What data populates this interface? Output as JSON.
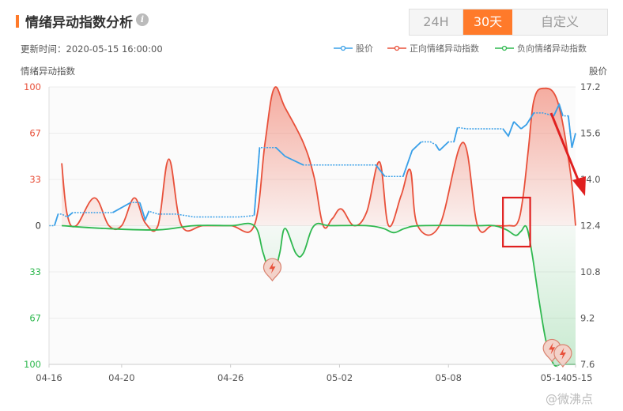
{
  "header": {
    "title": "情绪异动指数分析",
    "info_icon": "i",
    "tabs": [
      {
        "label": "24H",
        "active": false
      },
      {
        "label": "30天",
        "active": true
      },
      {
        "label": "自定义",
        "active": false
      }
    ],
    "accent_color": "#ff7a2a"
  },
  "meta": {
    "updated": "更新时间：2020-05-15 16:00:00"
  },
  "watermark": "@微沸点",
  "chart_data": {
    "type": "line",
    "ylabel": "情绪异动指数",
    "y2label": "股价",
    "left_ticks": [
      {
        "label": "100",
        "color": "#e8503a"
      },
      {
        "label": "67",
        "color": "#e8503a"
      },
      {
        "label": "33",
        "color": "#e8503a"
      },
      {
        "label": "0",
        "color": "#333333"
      },
      {
        "label": "33",
        "color": "#2fb84f"
      },
      {
        "label": "67",
        "color": "#2fb84f"
      },
      {
        "label": "100",
        "color": "#2fb84f"
      }
    ],
    "right_ticks": [
      "17.2",
      "15.6",
      "14.0",
      "12.4",
      "10.8",
      "9.2",
      "7.6"
    ],
    "ylim_left": [
      -100,
      100
    ],
    "ylim_right": [
      7.6,
      17.2
    ],
    "xlim": [
      0,
      29
    ],
    "x_ticks": [
      {
        "label": "04-16",
        "x": 0
      },
      {
        "label": "04-20",
        "x": 4
      },
      {
        "label": "04-26",
        "x": 10
      },
      {
        "label": "05-02",
        "x": 16
      },
      {
        "label": "05-08",
        "x": 22
      },
      {
        "label": "05-14",
        "x": 28
      },
      {
        "label": "05-15",
        "x": 29
      }
    ],
    "legend": [
      {
        "name": "股价",
        "color": "#3aa0e8",
        "marker": "circle"
      },
      {
        "name": "正向情绪异动指数",
        "color": "#e8503a",
        "marker": "circle"
      },
      {
        "name": "负向情绪异动指数",
        "color": "#2fb84f",
        "marker": "circle"
      }
    ],
    "series": [
      {
        "name": "正向情绪异动指数",
        "color": "#e8503a",
        "points": [
          [
            0.7,
            45
          ],
          [
            1.0,
            8
          ],
          [
            1.5,
            0
          ],
          [
            2.5,
            20
          ],
          [
            3.3,
            0
          ],
          [
            4.0,
            0
          ],
          [
            4.7,
            20
          ],
          [
            5.3,
            2
          ],
          [
            6.0,
            0
          ],
          [
            6.6,
            48
          ],
          [
            7.3,
            0
          ],
          [
            8.5,
            0
          ],
          [
            10.0,
            0
          ],
          [
            11.3,
            0
          ],
          [
            11.9,
            60
          ],
          [
            12.4,
            99
          ],
          [
            13.0,
            85
          ],
          [
            14.0,
            60
          ],
          [
            14.6,
            35
          ],
          [
            15.1,
            0
          ],
          [
            15.6,
            5
          ],
          [
            16.1,
            12
          ],
          [
            16.8,
            0
          ],
          [
            17.5,
            10
          ],
          [
            18.2,
            46
          ],
          [
            18.7,
            0
          ],
          [
            19.4,
            22
          ],
          [
            19.9,
            40
          ],
          [
            20.3,
            0
          ],
          [
            21.5,
            0
          ],
          [
            22.8,
            60
          ],
          [
            23.6,
            0
          ],
          [
            24.4,
            0
          ],
          [
            25.3,
            0
          ],
          [
            25.8,
            2
          ],
          [
            26.1,
            20
          ],
          [
            26.4,
            55
          ],
          [
            26.7,
            90
          ],
          [
            27.2,
            99
          ],
          [
            28.0,
            90
          ],
          [
            28.7,
            40
          ],
          [
            29.0,
            0
          ]
        ]
      },
      {
        "name": "负向情绪异动指数",
        "color": "#2fb84f",
        "points": [
          [
            0.7,
            0
          ],
          [
            3.0,
            -2
          ],
          [
            6.0,
            -3
          ],
          [
            8.0,
            0
          ],
          [
            10.0,
            0
          ],
          [
            11.3,
            0
          ],
          [
            11.8,
            -20
          ],
          [
            12.3,
            -38
          ],
          [
            12.7,
            -20
          ],
          [
            13.0,
            -2
          ],
          [
            13.6,
            -20
          ],
          [
            14.0,
            -20
          ],
          [
            14.6,
            0
          ],
          [
            15.5,
            0
          ],
          [
            17.5,
            0
          ],
          [
            18.4,
            -2
          ],
          [
            19.0,
            -5
          ],
          [
            19.6,
            -2
          ],
          [
            20.5,
            0
          ],
          [
            23.5,
            0
          ],
          [
            24.5,
            0
          ],
          [
            25.2,
            -3
          ],
          [
            25.7,
            -7
          ],
          [
            26.0,
            -4
          ],
          [
            26.3,
            -1
          ],
          [
            26.6,
            -20
          ],
          [
            27.0,
            -55
          ],
          [
            27.4,
            -85
          ],
          [
            27.8,
            -100
          ],
          [
            28.2,
            -100
          ],
          [
            29.0,
            -100
          ]
        ]
      },
      {
        "name": "股价",
        "color": "#3aa0e8",
        "points": [
          [
            0.0,
            12.4
          ],
          [
            0.3,
            12.4
          ],
          [
            0.5,
            12.8
          ],
          [
            0.7,
            12.8
          ],
          [
            1.0,
            12.7
          ],
          [
            1.3,
            12.85
          ],
          [
            2.0,
            12.85
          ],
          [
            3.5,
            12.85
          ],
          [
            4.5,
            13.2
          ],
          [
            5.0,
            13.2
          ],
          [
            5.3,
            12.6
          ],
          [
            5.5,
            12.9
          ],
          [
            6.0,
            12.8
          ],
          [
            7.0,
            12.8
          ],
          [
            8.0,
            12.7
          ],
          [
            9.0,
            12.7
          ],
          [
            10.5,
            12.7
          ],
          [
            11.3,
            12.75
          ],
          [
            11.6,
            15.1
          ],
          [
            12.5,
            15.1
          ],
          [
            13.0,
            14.8
          ],
          [
            14.0,
            14.5
          ],
          [
            16.0,
            14.5
          ],
          [
            18.0,
            14.5
          ],
          [
            18.5,
            14.1
          ],
          [
            19.0,
            14.1
          ],
          [
            19.5,
            14.1
          ],
          [
            20.0,
            15.0
          ],
          [
            20.5,
            15.3
          ],
          [
            21.0,
            15.3
          ],
          [
            21.3,
            15.2
          ],
          [
            21.5,
            15.0
          ],
          [
            22.0,
            15.3
          ],
          [
            22.3,
            15.3
          ],
          [
            22.5,
            15.8
          ],
          [
            23.0,
            15.75
          ],
          [
            24.0,
            15.75
          ],
          [
            25.0,
            15.75
          ],
          [
            25.3,
            15.5
          ],
          [
            25.6,
            16.0
          ],
          [
            26.0,
            15.75
          ],
          [
            26.3,
            15.9
          ],
          [
            26.7,
            16.3
          ],
          [
            27.2,
            16.3
          ],
          [
            27.8,
            16.2
          ],
          [
            28.1,
            16.6
          ],
          [
            28.3,
            16.2
          ],
          [
            28.6,
            16.2
          ],
          [
            28.8,
            15.1
          ],
          [
            29.0,
            15.6
          ]
        ]
      }
    ],
    "alert_markers_x": [
      12.3,
      27.7,
      28.3
    ],
    "highlight_box_x": [
      25.0,
      26.5
    ]
  }
}
